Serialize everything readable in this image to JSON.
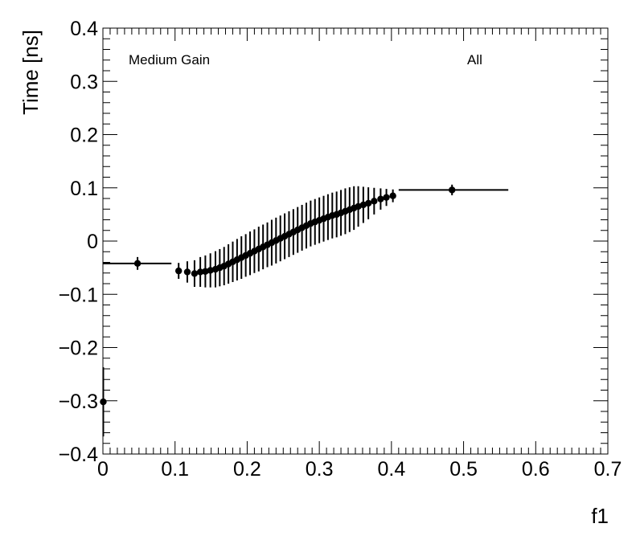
{
  "chart_data": {
    "type": "scatter",
    "title": "",
    "xlabel": "f1",
    "ylabel": "Time [ns]",
    "xlim": [
      0,
      0.7
    ],
    "ylim": [
      -0.4,
      0.4
    ],
    "grid": false,
    "x_ticks": [
      {
        "value": 0,
        "label": "0"
      },
      {
        "value": 0.1,
        "label": "0.1"
      },
      {
        "value": 0.2,
        "label": "0.2"
      },
      {
        "value": 0.3,
        "label": "0.3"
      },
      {
        "value": 0.4,
        "label": "0.4"
      },
      {
        "value": 0.5,
        "label": "0.5"
      },
      {
        "value": 0.6,
        "label": "0.6"
      },
      {
        "value": 0.7,
        "label": "0.7"
      }
    ],
    "y_ticks": [
      {
        "value": 0.4,
        "label": "0.4"
      },
      {
        "value": 0.3,
        "label": "0.3"
      },
      {
        "value": 0.2,
        "label": "0.2"
      },
      {
        "value": 0.1,
        "label": "0.1"
      },
      {
        "value": 0,
        "label": "0"
      },
      {
        "value": -0.1,
        "label": "−0.1"
      },
      {
        "value": -0.2,
        "label": "−0.2"
      },
      {
        "value": -0.3,
        "label": "−0.3"
      },
      {
        "value": -0.4,
        "label": "−0.4"
      }
    ],
    "annotations": [
      {
        "text": "Medium Gain",
        "position": "top-left"
      },
      {
        "text": "All",
        "position": "top-right"
      }
    ],
    "series": [
      {
        "points": [
          {
            "x": 0.0005,
            "y": -0.302,
            "xerr_low": 0.0005,
            "xerr_high": 0.0005,
            "yerr": 0.065
          },
          {
            "x": 0.048,
            "y": -0.042,
            "xerr_low": 0.048,
            "xerr_high": 0.047,
            "yerr": 0.012
          },
          {
            "x": 0.105,
            "y": -0.056,
            "xerr_low": 0.003,
            "xerr_high": 0.003,
            "yerr": 0.015
          },
          {
            "x": 0.117,
            "y": -0.058,
            "xerr_low": 0.003,
            "xerr_high": 0.003,
            "yerr": 0.02
          },
          {
            "x": 0.127,
            "y": -0.061,
            "xerr_low": 0.002,
            "xerr_high": 0.002,
            "yerr": 0.025
          },
          {
            "x": 0.135,
            "y": -0.058,
            "xerr_low": 0.002,
            "xerr_high": 0.002,
            "yerr": 0.028
          },
          {
            "x": 0.142,
            "y": -0.057,
            "xerr_low": 0.002,
            "xerr_high": 0.002,
            "yerr": 0.03
          },
          {
            "x": 0.149,
            "y": -0.055,
            "xerr_low": 0.002,
            "xerr_high": 0.002,
            "yerr": 0.032
          },
          {
            "x": 0.156,
            "y": -0.053,
            "xerr_low": 0.002,
            "xerr_high": 0.002,
            "yerr": 0.034
          },
          {
            "x": 0.162,
            "y": -0.05,
            "xerr_low": 0.002,
            "xerr_high": 0.002,
            "yerr": 0.035
          },
          {
            "x": 0.168,
            "y": -0.047,
            "xerr_low": 0.002,
            "xerr_high": 0.002,
            "yerr": 0.036
          },
          {
            "x": 0.174,
            "y": -0.043,
            "xerr_low": 0.002,
            "xerr_high": 0.002,
            "yerr": 0.037
          },
          {
            "x": 0.18,
            "y": -0.039,
            "xerr_low": 0.002,
            "xerr_high": 0.002,
            "yerr": 0.038
          },
          {
            "x": 0.186,
            "y": -0.035,
            "xerr_low": 0.002,
            "xerr_high": 0.002,
            "yerr": 0.039
          },
          {
            "x": 0.192,
            "y": -0.031,
            "xerr_low": 0.002,
            "xerr_high": 0.002,
            "yerr": 0.04
          },
          {
            "x": 0.198,
            "y": -0.027,
            "xerr_low": 0.002,
            "xerr_high": 0.002,
            "yerr": 0.04
          },
          {
            "x": 0.204,
            "y": -0.023,
            "xerr_low": 0.002,
            "xerr_high": 0.002,
            "yerr": 0.041
          },
          {
            "x": 0.21,
            "y": -0.019,
            "xerr_low": 0.002,
            "xerr_high": 0.002,
            "yerr": 0.041
          },
          {
            "x": 0.216,
            "y": -0.015,
            "xerr_low": 0.002,
            "xerr_high": 0.002,
            "yerr": 0.042
          },
          {
            "x": 0.222,
            "y": -0.011,
            "xerr_low": 0.002,
            "xerr_high": 0.002,
            "yerr": 0.042
          },
          {
            "x": 0.228,
            "y": -0.007,
            "xerr_low": 0.002,
            "xerr_high": 0.002,
            "yerr": 0.042
          },
          {
            "x": 0.234,
            "y": -0.003,
            "xerr_low": 0.002,
            "xerr_high": 0.002,
            "yerr": 0.043
          },
          {
            "x": 0.24,
            "y": 0.001,
            "xerr_low": 0.002,
            "xerr_high": 0.002,
            "yerr": 0.043
          },
          {
            "x": 0.246,
            "y": 0.005,
            "xerr_low": 0.002,
            "xerr_high": 0.002,
            "yerr": 0.043
          },
          {
            "x": 0.252,
            "y": 0.009,
            "xerr_low": 0.002,
            "xerr_high": 0.002,
            "yerr": 0.043
          },
          {
            "x": 0.258,
            "y": 0.013,
            "xerr_low": 0.002,
            "xerr_high": 0.002,
            "yerr": 0.043
          },
          {
            "x": 0.264,
            "y": 0.017,
            "xerr_low": 0.002,
            "xerr_high": 0.002,
            "yerr": 0.043
          },
          {
            "x": 0.27,
            "y": 0.021,
            "xerr_low": 0.002,
            "xerr_high": 0.002,
            "yerr": 0.043
          },
          {
            "x": 0.276,
            "y": 0.025,
            "xerr_low": 0.002,
            "xerr_high": 0.002,
            "yerr": 0.043
          },
          {
            "x": 0.282,
            "y": 0.029,
            "xerr_low": 0.002,
            "xerr_high": 0.002,
            "yerr": 0.043
          },
          {
            "x": 0.288,
            "y": 0.033,
            "xerr_low": 0.002,
            "xerr_high": 0.002,
            "yerr": 0.043
          },
          {
            "x": 0.294,
            "y": 0.036,
            "xerr_low": 0.002,
            "xerr_high": 0.002,
            "yerr": 0.043
          },
          {
            "x": 0.3,
            "y": 0.039,
            "xerr_low": 0.002,
            "xerr_high": 0.002,
            "yerr": 0.043
          },
          {
            "x": 0.306,
            "y": 0.042,
            "xerr_low": 0.002,
            "xerr_high": 0.002,
            "yerr": 0.043
          },
          {
            "x": 0.312,
            "y": 0.045,
            "xerr_low": 0.002,
            "xerr_high": 0.002,
            "yerr": 0.043
          },
          {
            "x": 0.318,
            "y": 0.048,
            "xerr_low": 0.002,
            "xerr_high": 0.002,
            "yerr": 0.043
          },
          {
            "x": 0.324,
            "y": 0.05,
            "xerr_low": 0.002,
            "xerr_high": 0.002,
            "yerr": 0.043
          },
          {
            "x": 0.33,
            "y": 0.053,
            "xerr_low": 0.002,
            "xerr_high": 0.002,
            "yerr": 0.043
          },
          {
            "x": 0.336,
            "y": 0.056,
            "xerr_low": 0.002,
            "xerr_high": 0.002,
            "yerr": 0.043
          },
          {
            "x": 0.342,
            "y": 0.059,
            "xerr_low": 0.002,
            "xerr_high": 0.002,
            "yerr": 0.042
          },
          {
            "x": 0.348,
            "y": 0.062,
            "xerr_low": 0.002,
            "xerr_high": 0.002,
            "yerr": 0.041
          },
          {
            "x": 0.354,
            "y": 0.065,
            "xerr_low": 0.002,
            "xerr_high": 0.002,
            "yerr": 0.038
          },
          {
            "x": 0.361,
            "y": 0.068,
            "xerr_low": 0.002,
            "xerr_high": 0.002,
            "yerr": 0.034
          },
          {
            "x": 0.368,
            "y": 0.071,
            "xerr_low": 0.002,
            "xerr_high": 0.002,
            "yerr": 0.03
          },
          {
            "x": 0.376,
            "y": 0.075,
            "xerr_low": 0.002,
            "xerr_high": 0.002,
            "yerr": 0.025
          },
          {
            "x": 0.385,
            "y": 0.079,
            "xerr_low": 0.003,
            "xerr_high": 0.003,
            "yerr": 0.02
          },
          {
            "x": 0.393,
            "y": 0.082,
            "xerr_low": 0.003,
            "xerr_high": 0.003,
            "yerr": 0.016
          },
          {
            "x": 0.402,
            "y": 0.085,
            "xerr_low": 0.003,
            "xerr_high": 0.003,
            "yerr": 0.012
          },
          {
            "x": 0.484,
            "y": 0.096,
            "xerr_low": 0.074,
            "xerr_high": 0.078,
            "yerr": 0.01
          }
        ]
      }
    ]
  }
}
